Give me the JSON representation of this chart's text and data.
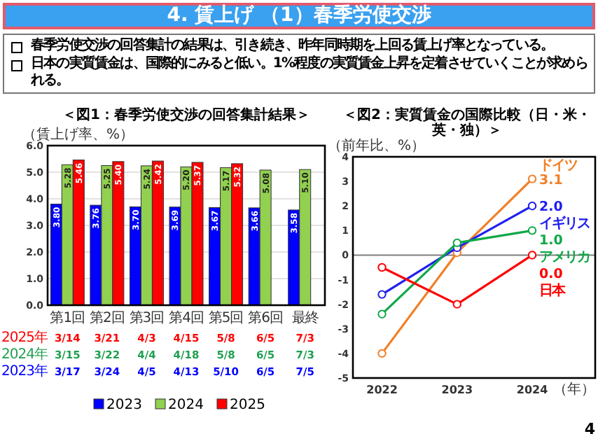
{
  "chart_data": [
    {
      "type": "other",
      "title": "4. 賃上げ （1）春季労使交渉",
      "annotations": [
        "春季労使交渉の回答集計の結果は、引き続き、昨年同時期を上回る賃上げ率となっている。",
        "日本の実質賃金は、国際的にみると低い。1%程度の実質賃金上昇を定着させていくことが求められる。"
      ]
    },
    {
      "type": "bar",
      "title": "＜図1：春季労使交渉の回答集計結果＞",
      "ylabel": "（賃上げ率、%）",
      "categories": [
        "第1回",
        "第2回",
        "第3回",
        "第4回",
        "第5回",
        "第6回",
        "最終"
      ],
      "series": [
        {
          "name": "2023",
          "color": "#0000ff",
          "values": [
            3.8,
            3.76,
            3.7,
            3.69,
            3.67,
            3.66,
            3.58
          ],
          "value_labels": [
            "3.80",
            "3.76",
            "3.70",
            "3.69",
            "3.67",
            "3.66",
            "3.58"
          ]
        },
        {
          "name": "2024",
          "color": "#92d050",
          "values": [
            5.28,
            5.25,
            5.24,
            5.2,
            5.17,
            5.08,
            5.1
          ],
          "value_labels": [
            "5.28",
            "5.25",
            "5.24",
            "5.20",
            "5.17",
            "5.08",
            "5.10"
          ]
        },
        {
          "name": "2025",
          "color": "#ff0000",
          "values": [
            5.46,
            5.4,
            5.42,
            5.37,
            5.32,
            null,
            null
          ],
          "value_labels": [
            "5.46",
            "5.40",
            "5.42",
            "5.37",
            "5.32",
            null,
            null
          ]
        }
      ],
      "ylim": [
        0,
        6
      ],
      "yticks": [
        {
          "value": 0,
          "label": "0.0"
        },
        {
          "value": 1,
          "label": "1.0"
        },
        {
          "value": 2,
          "label": "2.0"
        },
        {
          "value": 3,
          "label": "3.0"
        },
        {
          "value": 4,
          "label": "4.0"
        },
        {
          "value": 5,
          "label": "5.0"
        },
        {
          "value": 6,
          "label": "6.0"
        }
      ],
      "grid": "y",
      "legend": "bottom",
      "annotations": [
        "2025年",
        "3/14",
        "3/21",
        "4/3",
        "4/15",
        "5/8",
        "6/5",
        "7/3",
        "2024年",
        "3/15",
        "3/22",
        "4/4",
        "4/18",
        "5/8",
        "6/5",
        "7/3",
        "2023年",
        "3/17",
        "3/24",
        "4/5",
        "4/13",
        "5/10",
        "6/5",
        "7/5"
      ]
    },
    {
      "type": "line",
      "title": "＜図2：実質賃金の国際比較（日・米・英・独）＞",
      "ylabel": "（前年比、%）",
      "xlabel": "（年）",
      "categories": [
        "2022",
        "2023",
        "2024"
      ],
      "series": [
        {
          "name": "ドイツ",
          "color": "#f08028",
          "values": [
            -4.0,
            0.1,
            3.1
          ],
          "value_labels": [
            null,
            null,
            "3.1"
          ]
        },
        {
          "name": "イギリス",
          "color": "#2020f0",
          "values": [
            -1.6,
            0.3,
            2.0
          ],
          "value_labels": [
            null,
            null,
            "2.0"
          ]
        },
        {
          "name": "アメリカ",
          "color": "#10a848",
          "values": [
            -2.4,
            0.5,
            1.0
          ],
          "value_labels": [
            null,
            null,
            "1.0"
          ]
        },
        {
          "name": "日本",
          "color": "#ff0000",
          "values": [
            -0.5,
            -2.0,
            0.0
          ],
          "value_labels": [
            null,
            null,
            "0.0"
          ]
        }
      ],
      "ylim": [
        -5,
        4
      ],
      "yticks": [
        -5,
        -4,
        -3,
        -2,
        -1,
        0,
        1,
        2,
        3,
        4
      ],
      "marker": "circle",
      "ref_lines": [
        {
          "axis": "y",
          "value": 0,
          "color": "#808080"
        }
      ]
    },
    {
      "type": "other",
      "annotations": [
        "4"
      ]
    }
  ]
}
